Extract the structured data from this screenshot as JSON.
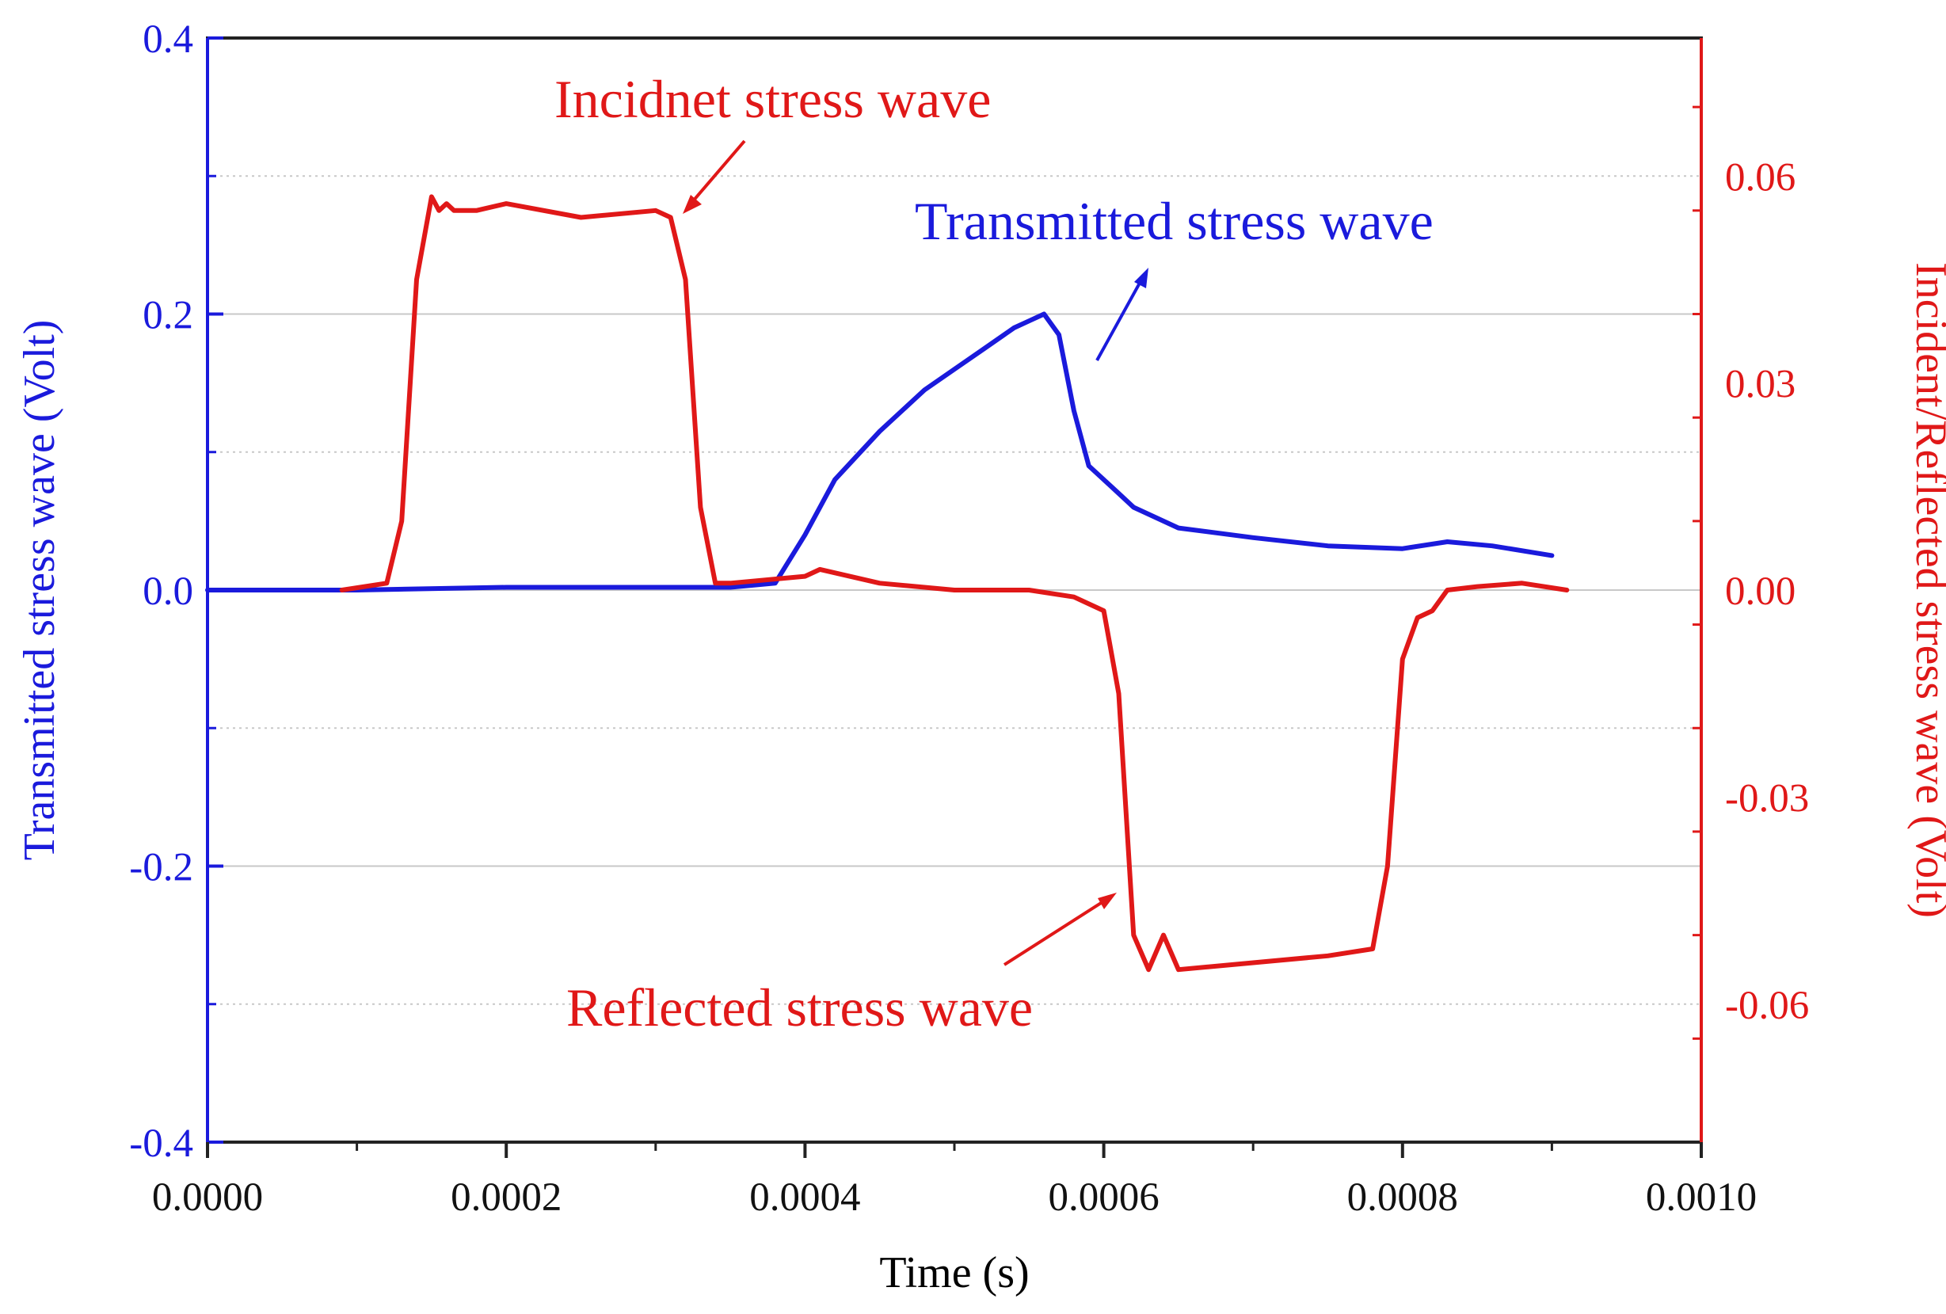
{
  "chart_data": {
    "type": "line",
    "title": "",
    "xlabel": "Time (s)",
    "ylabel_left": "Transmitted stress wave (Volt)",
    "ylabel_right": "Incident/Reflected stress wave (Volt)",
    "xlim": [
      0,
      0.001
    ],
    "ylim_left": [
      -0.4,
      0.4
    ],
    "ylim_right": [
      -0.08,
      0.08
    ],
    "x_ticks": [
      "0.0000",
      "0.0002",
      "0.0004",
      "0.0006",
      "0.0008",
      "0.0010"
    ],
    "x_tick_values": [
      0,
      0.0002,
      0.0004,
      0.0006,
      0.0008,
      0.001
    ],
    "y_left_ticks": [
      "0.4",
      "0.2",
      "0.0",
      "-0.2",
      "-0.4"
    ],
    "y_left_tick_values": [
      0.4,
      0.2,
      0.0,
      -0.2,
      -0.4
    ],
    "y_right_ticks": [
      "0.06",
      "0.03",
      "0.00",
      "-0.03",
      "-0.06"
    ],
    "y_right_tick_values": [
      0.06,
      0.03,
      0.0,
      -0.03,
      -0.06
    ],
    "grid": true,
    "colors": {
      "left_axis": "#1a1adc",
      "right_axis": "#e01818",
      "grid": "#c8c8c8"
    },
    "series": [
      {
        "name": "Transmitted stress wave",
        "axis": "left",
        "color": "#1a1adc",
        "x": [
          0,
          0.0001,
          0.0002,
          0.0003,
          0.00035,
          0.00038,
          0.0004,
          0.00042,
          0.00045,
          0.00048,
          0.0005,
          0.00052,
          0.00054,
          0.00055,
          0.00056,
          0.00057,
          0.00058,
          0.00059,
          0.0006,
          0.00061,
          0.00062,
          0.00065,
          0.0007,
          0.00075,
          0.0008,
          0.00083,
          0.00086,
          0.0009
        ],
        "values": [
          0.0,
          0.0,
          0.002,
          0.002,
          0.002,
          0.005,
          0.04,
          0.08,
          0.115,
          0.145,
          0.16,
          0.175,
          0.19,
          0.195,
          0.2,
          0.185,
          0.13,
          0.09,
          0.08,
          0.07,
          0.06,
          0.045,
          0.038,
          0.032,
          0.03,
          0.035,
          0.032,
          0.025
        ]
      },
      {
        "name": "Incident/Reflected stress wave",
        "axis": "right",
        "color": "#e01818",
        "x": [
          9e-05,
          0.00012,
          0.00013,
          0.00014,
          0.00015,
          0.000155,
          0.00016,
          0.000165,
          0.00017,
          0.00018,
          0.0002,
          0.00025,
          0.0003,
          0.00031,
          0.00032,
          0.00033,
          0.00034,
          0.00035,
          0.0004,
          0.00041,
          0.00045,
          0.0005,
          0.00055,
          0.00058,
          0.0006,
          0.00061,
          0.00062,
          0.00063,
          0.00064,
          0.00065,
          0.0007,
          0.00075,
          0.00078,
          0.00079,
          0.0008,
          0.00081,
          0.00082,
          0.00083,
          0.00085,
          0.00088,
          0.00091
        ],
        "values": [
          0.0,
          0.001,
          0.01,
          0.045,
          0.057,
          0.055,
          0.056,
          0.055,
          0.055,
          0.055,
          0.056,
          0.054,
          0.055,
          0.054,
          0.045,
          0.012,
          0.001,
          0.001,
          0.002,
          0.003,
          0.001,
          0.0,
          0.0,
          -0.001,
          -0.003,
          -0.015,
          -0.05,
          -0.055,
          -0.05,
          -0.055,
          -0.054,
          -0.053,
          -0.052,
          -0.04,
          -0.01,
          -0.004,
          -0.003,
          0.0,
          0.0005,
          0.001,
          0.0
        ]
      }
    ],
    "annotations": [
      {
        "text": "Incidnet stress wave",
        "color": "#e01818"
      },
      {
        "text": "Transmitted stress wave",
        "color": "#1a1adc"
      },
      {
        "text": "Reflected stress wave",
        "color": "#e01818"
      }
    ]
  }
}
